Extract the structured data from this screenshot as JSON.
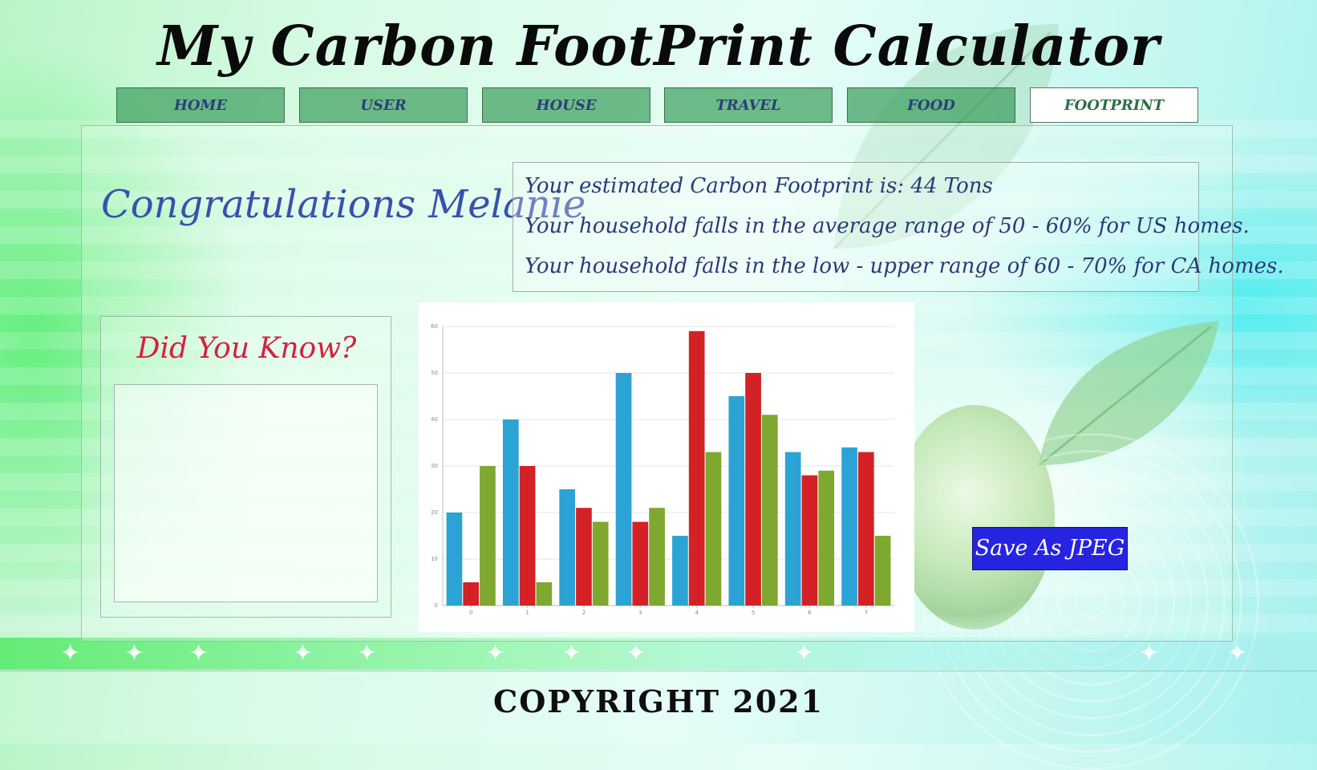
{
  "page": {
    "title": "My Carbon FootPrint Calculator",
    "copyright": "COPYRIGHT 2021"
  },
  "nav": {
    "tabs": [
      {
        "label": "HOME",
        "active": false
      },
      {
        "label": "USER",
        "active": false
      },
      {
        "label": "HOUSE",
        "active": false
      },
      {
        "label": "TRAVEL",
        "active": false
      },
      {
        "label": "FOOD",
        "active": false
      },
      {
        "label": "FOOTPRINT",
        "active": true
      }
    ]
  },
  "greeting": {
    "text": "Congratulations",
    "name": "Melanie"
  },
  "results": {
    "lines": [
      "Your estimated Carbon Footprint is: 44 Tons",
      "Your household falls in the average range of 50 - 60% for US homes.",
      "Your household falls in the low - upper range of 60 - 70% for CA homes."
    ]
  },
  "did_you_know": {
    "title": "Did You Know?",
    "content": ""
  },
  "actions": {
    "save_label": "Save As JPEG"
  },
  "colors": {
    "series_blue": "#2ba3d4",
    "series_red": "#d42126",
    "series_green": "#7ea82f",
    "nav_tab": "#3ea060",
    "save_button": "#2624e0",
    "greeting": "#3752ad",
    "did_you_know_title": "#d6203f"
  },
  "chart_data": {
    "type": "bar",
    "categories": [
      "0",
      "1",
      "2",
      "3",
      "4",
      "5",
      "6",
      "7"
    ],
    "series": [
      {
        "values": [
          20,
          40,
          25,
          50,
          15,
          45,
          33,
          34
        ]
      },
      {
        "values": [
          5,
          30,
          21,
          18,
          59,
          50,
          28,
          33
        ]
      },
      {
        "values": [
          30,
          5,
          18,
          21,
          33,
          41,
          29,
          15
        ]
      }
    ],
    "yticks": [
      "0",
      "10",
      "20",
      "30",
      "40",
      "50",
      "60"
    ],
    "ylim": [
      0,
      60
    ],
    "grid": true,
    "legend": "none",
    "title": "",
    "xlabel": "",
    "ylabel": ""
  }
}
